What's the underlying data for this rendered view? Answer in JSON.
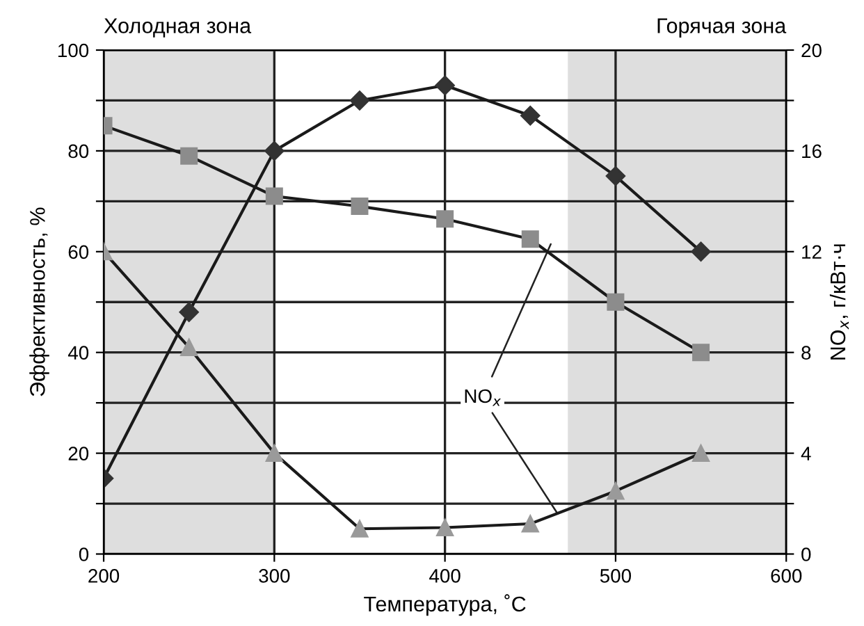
{
  "chart_data": {
    "type": "line",
    "xlabel": "Температура, ˚C",
    "ylabel": "Эффективность, %",
    "y2label": "NO$_{x}$, г/кВт·ч",
    "x": [
      200,
      250,
      300,
      350,
      400,
      450,
      500,
      550
    ],
    "series": [
      {
        "color": "#333333",
        "marker": "diamond",
        "values": [
          15,
          48,
          80,
          90,
          93,
          87,
          75,
          60
        ]
      },
      {
        "color": "#8c8c8c",
        "marker": "square",
        "axis": "y2",
        "values": [
          17,
          15.8,
          14.2,
          13.8,
          13.3,
          12.5,
          10,
          8
        ]
      },
      {
        "color": "#9a9a9a",
        "marker": "triangle",
        "axis": "y2",
        "values": [
          12,
          8.2,
          4,
          1,
          1.05,
          1.2,
          2.5,
          4
        ]
      }
    ],
    "xlim": [
      200,
      600
    ],
    "xticks": [
      200,
      300,
      400,
      500,
      600
    ],
    "ylim": [
      0,
      100
    ],
    "yticks": [
      0,
      {
        "value": 10,
        "label": null
      },
      20,
      {
        "value": 30,
        "label": null
      },
      40,
      {
        "value": 50,
        "label": null
      },
      60,
      {
        "value": 70,
        "label": null
      },
      80,
      {
        "value": 90,
        "label": null
      },
      100
    ],
    "y2lim": [
      0,
      20
    ],
    "y2ticks": [
      0,
      {
        "value": 2,
        "label": null
      },
      4,
      {
        "value": 6,
        "label": null
      },
      8,
      {
        "value": 10,
        "label": null
      },
      12,
      {
        "value": 14,
        "label": null
      },
      16,
      {
        "value": 18,
        "label": null
      },
      20
    ],
    "bands": [
      {
        "axis": "x",
        "from": 200,
        "to": 300,
        "label": "Холодная зона",
        "color": "#dedede"
      },
      {
        "axis": "x",
        "from": 472,
        "to": 600,
        "label": "Горячая зона",
        "color": "#dedede"
      }
    ],
    "annotations": [
      {
        "text": "NO$_{x}$",
        "x": 466,
        "y": 8
      }
    ],
    "grid": true,
    "legend": false,
    "line_style": "solid"
  }
}
